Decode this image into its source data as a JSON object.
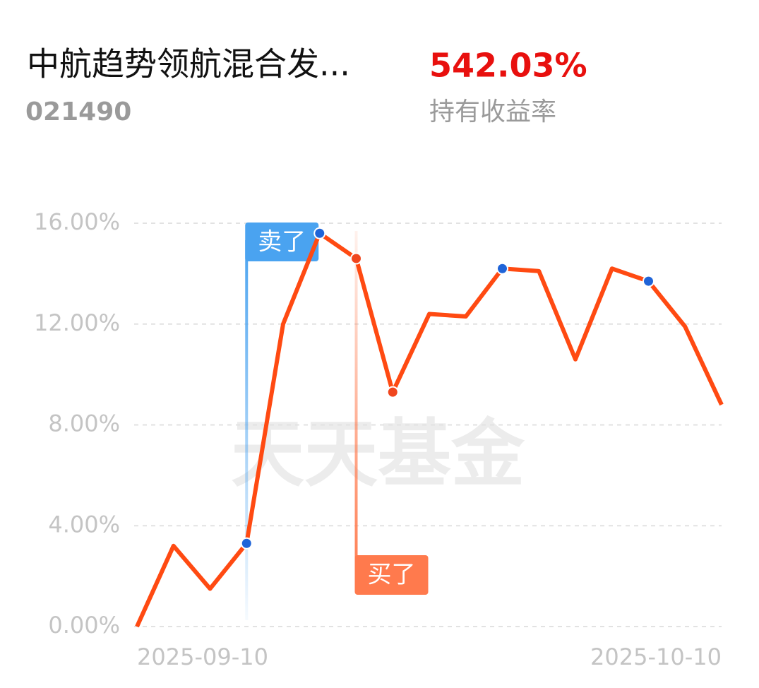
{
  "chart_data": {
    "type": "line",
    "title": "中航趋势领航混合发...",
    "subtitle": "021490",
    "return_value": "542.03%",
    "return_label": "持有收益率",
    "watermark": "天天基金",
    "categories": [
      "2025-09-10",
      null,
      null,
      null,
      null,
      null,
      null,
      null,
      null,
      null,
      null,
      null,
      null,
      null,
      null,
      null,
      "2025-10-10"
    ],
    "series": [
      {
        "color": "#ff4a12",
        "values": [
          0,
          3.2,
          1.5,
          3.3,
          12.0,
          15.6,
          14.6,
          9.3,
          12.4,
          12.3,
          14.2,
          14.1,
          10.6,
          14.2,
          13.7,
          11.9,
          8.8
        ]
      }
    ],
    "ylim": [
      0,
      16
    ],
    "yticks": [
      {
        "value": 0,
        "label": "0.00%"
      },
      {
        "value": 4,
        "label": "4.00%"
      },
      {
        "value": 8,
        "label": "8.00%"
      },
      {
        "value": 12,
        "label": "12.00%"
      },
      {
        "value": 16,
        "label": "16.00%"
      }
    ],
    "grid": true,
    "sell_points": [
      3,
      5,
      10,
      14
    ],
    "sell_color": "#1f64d8",
    "buy_points": [
      6,
      7
    ],
    "buy_color": "#f0461e",
    "annotations": [
      {
        "text": "卖了",
        "index": 3,
        "color": "#4aa3f0"
      },
      {
        "text": "买了",
        "index": 6,
        "color": "#ff7a4d"
      }
    ]
  }
}
